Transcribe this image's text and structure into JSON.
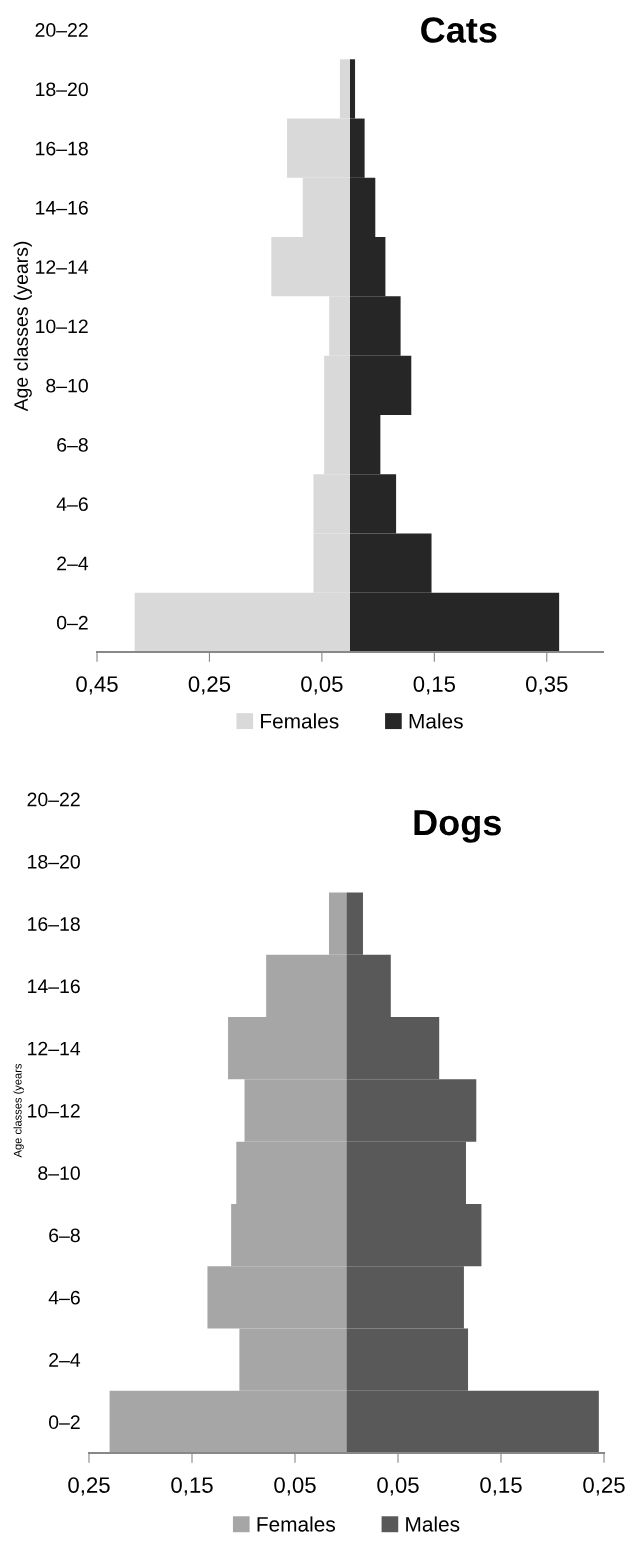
{
  "chart_data": [
    {
      "type": "bar",
      "orientation": "horizontal",
      "stacked": true,
      "title": "Cats",
      "ylabel": "Age classes (years)",
      "categories": [
        "20–22",
        "18–20",
        "16–18",
        "14–16",
        "12–14",
        "10–12",
        "8–10",
        "6–8",
        "4–6",
        "2–4",
        "0–2"
      ],
      "series": [
        {
          "name": "Females",
          "color": "#d9d9d9",
          "values": [
            0,
            -0.018,
            -0.112,
            -0.084,
            -0.14,
            -0.037,
            -0.046,
            -0.046,
            -0.065,
            -0.065,
            -0.383
          ]
        },
        {
          "name": "Males",
          "color": "#262626",
          "values": [
            0,
            0.009,
            0.026,
            0.045,
            0.063,
            0.09,
            0.109,
            0.054,
            0.082,
            0.145,
            0.372
          ]
        }
      ],
      "xlim": [
        -0.45,
        0.45
      ],
      "xticks": [
        {
          "value": -0.45,
          "label": "0,45"
        },
        {
          "value": -0.25,
          "label": "0,25"
        },
        {
          "value": -0.05,
          "label": "0,05"
        },
        {
          "value": 0.15,
          "label": "0,15"
        },
        {
          "value": 0.35,
          "label": "0,35"
        }
      ],
      "grid": false,
      "legend": "bottom"
    },
    {
      "type": "bar",
      "orientation": "horizontal",
      "stacked": true,
      "title": "Dogs",
      "ylabel": "Age classes (years",
      "categories": [
        "20–22",
        "18–20",
        "16–18",
        "14–16",
        "12–14",
        "10–12",
        "8–10",
        "6–8",
        "4–6",
        "2–4",
        "0–2"
      ],
      "series": [
        {
          "name": "Females",
          "color": "#a6a6a6",
          "values": [
            0,
            0,
            -0.017,
            -0.078,
            -0.115,
            -0.099,
            -0.107,
            -0.112,
            -0.135,
            -0.104,
            -0.23
          ]
        },
        {
          "name": "Males",
          "color": "#595959",
          "values": [
            0,
            0,
            0.016,
            0.043,
            0.09,
            0.126,
            0.116,
            0.131,
            0.114,
            0.118,
            0.245
          ]
        }
      ],
      "xlim": [
        -0.25,
        0.25
      ],
      "xticks": [
        {
          "value": -0.25,
          "label": "0,25"
        },
        {
          "value": -0.15,
          "label": "0,15"
        },
        {
          "value": -0.05,
          "label": "0,05"
        },
        {
          "value": 0.05,
          "label": "0,05"
        },
        {
          "value": 0.15,
          "label": "0,15"
        },
        {
          "value": 0.25,
          "label": "0,25"
        }
      ],
      "grid": false,
      "legend": "bottom"
    }
  ]
}
